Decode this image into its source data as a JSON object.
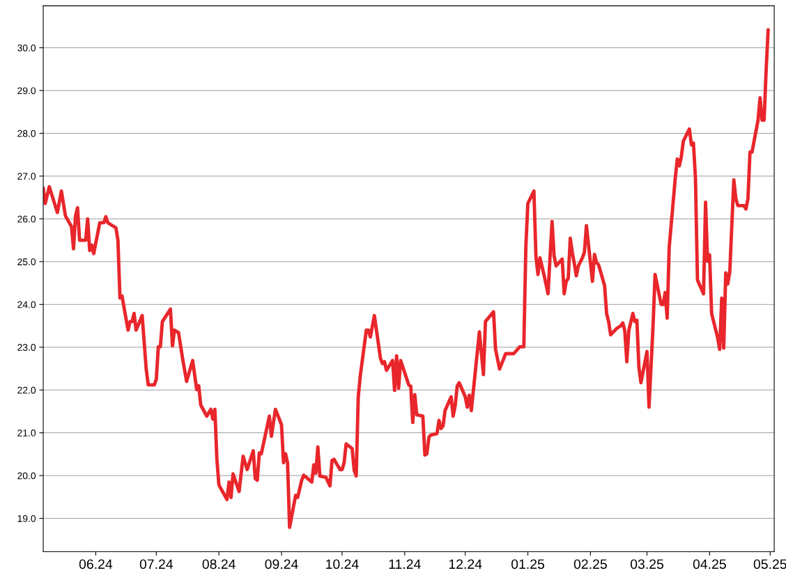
{
  "chart_data": {
    "type": "line",
    "x": [
      "2024-05-06",
      "2024-05-07",
      "2024-05-09",
      "2024-05-13",
      "2024-05-15",
      "2024-05-17",
      "2024-05-20",
      "2024-05-21",
      "2024-05-22",
      "2024-05-23",
      "2024-05-24",
      "2024-05-27",
      "2024-05-28",
      "2024-05-29",
      "2024-05-30",
      "2024-05-31",
      "2024-06-03",
      "2024-06-05",
      "2024-06-06",
      "2024-06-07",
      "2024-06-11",
      "2024-06-12",
      "2024-06-13",
      "2024-06-14",
      "2024-06-17",
      "2024-06-18",
      "2024-06-19",
      "2024-06-20",
      "2024-06-21",
      "2024-06-24",
      "2024-06-26",
      "2024-06-27",
      "2024-06-30",
      "2024-07-01",
      "2024-07-02",
      "2024-07-03",
      "2024-07-04",
      "2024-07-08",
      "2024-07-09",
      "2024-07-10",
      "2024-07-12",
      "2024-07-14",
      "2024-07-16",
      "2024-07-19",
      "2024-07-21",
      "2024-07-22",
      "2024-07-23",
      "2024-07-26",
      "2024-07-28",
      "2024-07-29",
      "2024-07-30",
      "2024-07-31",
      "2024-08-01",
      "2024-08-05",
      "2024-08-06",
      "2024-08-07",
      "2024-08-08",
      "2024-08-11",
      "2024-08-13",
      "2024-08-15",
      "2024-08-18",
      "2024-08-19",
      "2024-08-20",
      "2024-08-21",
      "2024-08-22",
      "2024-08-26",
      "2024-08-27",
      "2024-08-29",
      "2024-09-01",
      "2024-09-02",
      "2024-09-03",
      "2024-09-04",
      "2024-09-05",
      "2024-09-08",
      "2024-09-09",
      "2024-09-11",
      "2024-09-12",
      "2024-09-16",
      "2024-09-17",
      "2024-09-18",
      "2024-09-19",
      "2024-09-20",
      "2024-09-23",
      "2024-09-25",
      "2024-09-26",
      "2024-09-27",
      "2024-09-30",
      "2024-10-01",
      "2024-10-02",
      "2024-10-03",
      "2024-10-06",
      "2024-10-07",
      "2024-10-08",
      "2024-10-09",
      "2024-10-10",
      "2024-10-13",
      "2024-10-14",
      "2024-10-15",
      "2024-10-17",
      "2024-10-20",
      "2024-10-21",
      "2024-10-22",
      "2024-10-23",
      "2024-10-26",
      "2024-10-27",
      "2024-10-28",
      "2024-10-29",
      "2024-10-30",
      "2024-11-03",
      "2024-11-04",
      "2024-11-05",
      "2024-11-06",
      "2024-11-07",
      "2024-11-10",
      "2024-11-11",
      "2024-11-12",
      "2024-11-13",
      "2024-11-14",
      "2024-11-17",
      "2024-11-18",
      "2024-11-19",
      "2024-11-20",
      "2024-11-21",
      "2024-11-24",
      "2024-11-25",
      "2024-11-26",
      "2024-11-27",
      "2024-11-28",
      "2024-12-01",
      "2024-12-02",
      "2024-12-03",
      "2024-12-04",
      "2024-12-08",
      "2024-12-10",
      "2024-12-11",
      "2024-12-15",
      "2024-12-16",
      "2024-12-18",
      "2024-12-21",
      "2024-12-25",
      "2024-12-28",
      "2024-12-30",
      "2024-12-31",
      "2025-01-01",
      "2025-01-04",
      "2025-01-05",
      "2025-01-06",
      "2025-01-07",
      "2025-01-09",
      "2025-01-11",
      "2025-01-12",
      "2025-01-13",
      "2025-01-14",
      "2025-01-15",
      "2025-01-18",
      "2025-01-19",
      "2025-01-20",
      "2025-01-21",
      "2025-01-22",
      "2025-01-23",
      "2025-01-24",
      "2025-01-25",
      "2025-01-26",
      "2025-01-28",
      "2025-01-29",
      "2025-01-30",
      "2025-02-02",
      "2025-02-03",
      "2025-02-04",
      "2025-02-05",
      "2025-02-08",
      "2025-02-09",
      "2025-02-10",
      "2025-02-11",
      "2025-02-14",
      "2025-02-16",
      "2025-02-17",
      "2025-02-18",
      "2025-02-19",
      "2025-02-20",
      "2025-02-22",
      "2025-02-23",
      "2025-02-24",
      "2025-02-25",
      "2025-02-26",
      "2025-03-01",
      "2025-03-02",
      "2025-03-04",
      "2025-03-05",
      "2025-03-08",
      "2025-03-09",
      "2025-03-10",
      "2025-03-11",
      "2025-03-12",
      "2025-03-15",
      "2025-03-16",
      "2025-03-17",
      "2025-03-18",
      "2025-03-19",
      "2025-03-22",
      "2025-03-23",
      "2025-03-24",
      "2025-03-25",
      "2025-03-26",
      "2025-03-29",
      "2025-03-30",
      "2025-03-31",
      "2025-04-01",
      "2025-04-02",
      "2025-04-05",
      "2025-04-06",
      "2025-04-07",
      "2025-04-08",
      "2025-04-09",
      "2025-04-10",
      "2025-04-11",
      "2025-04-13",
      "2025-04-14",
      "2025-04-15",
      "2025-04-18",
      "2025-04-19",
      "2025-04-20",
      "2025-04-21",
      "2025-04-22",
      "2025-04-25",
      "2025-04-26",
      "2025-04-27",
      "2025-04-28",
      "2025-04-29",
      "2025-04-30"
    ],
    "series": [
      {
        "color": "#e8262b",
        "values": [
          26.72,
          26.36,
          26.75,
          26.15,
          26.65,
          26.07,
          25.82,
          25.3,
          26.07,
          26.26,
          25.5,
          25.5,
          26.0,
          25.26,
          25.39,
          25.19,
          25.91,
          25.91,
          26.05,
          25.91,
          25.79,
          25.5,
          24.15,
          24.2,
          23.4,
          23.6,
          23.6,
          23.79,
          23.4,
          23.74,
          22.49,
          22.12,
          22.12,
          22.25,
          23.01,
          23.01,
          23.6,
          23.89,
          23.03,
          23.4,
          23.34,
          22.74,
          22.2,
          22.69,
          22.01,
          22.1,
          21.65,
          21.39,
          21.55,
          21.32,
          21.55,
          20.38,
          19.78,
          19.44,
          19.85,
          19.49,
          20.04,
          19.63,
          20.45,
          20.14,
          20.58,
          19.93,
          19.89,
          20.53,
          20.51,
          21.39,
          20.92,
          21.55,
          21.19,
          20.3,
          20.51,
          20.3,
          18.79,
          19.54,
          19.49,
          19.89,
          20.01,
          19.85,
          20.25,
          20.06,
          20.67,
          19.99,
          19.96,
          19.76,
          20.35,
          20.38,
          20.14,
          20.14,
          20.3,
          20.74,
          20.63,
          20.12,
          19.99,
          21.83,
          22.33,
          23.4,
          23.4,
          23.24,
          23.74,
          22.74,
          22.62,
          22.66,
          22.46,
          22.69,
          21.99,
          22.8,
          22.04,
          22.69,
          22.12,
          22.09,
          21.24,
          21.89,
          21.42,
          21.39,
          20.48,
          20.51,
          20.9,
          20.95,
          20.98,
          21.29,
          21.1,
          21.16,
          21.52,
          21.84,
          21.39,
          21.63,
          22.09,
          22.17,
          21.84,
          21.6,
          21.88,
          21.52,
          23.36,
          22.36,
          23.6,
          23.83,
          22.95,
          22.49,
          22.85,
          22.85,
          23.01,
          23.01,
          25.34,
          26.36,
          26.65,
          25.13,
          24.7,
          25.09,
          24.69,
          24.25,
          25.13,
          25.94,
          25.13,
          24.9,
          25.06,
          24.25,
          24.54,
          24.61,
          25.55,
          25.22,
          24.96,
          24.67,
          24.9,
          25.09,
          25.22,
          25.84,
          24.54,
          25.17,
          24.98,
          24.93,
          24.44,
          23.79,
          23.6,
          23.29,
          23.44,
          23.5,
          23.57,
          23.39,
          22.66,
          23.39,
          23.79,
          23.6,
          23.63,
          22.53,
          22.17,
          22.9,
          21.6,
          23.5,
          24.7,
          24.0,
          24.0,
          24.28,
          23.68,
          25.34,
          26.95,
          27.4,
          27.24,
          27.45,
          27.82,
          28.1,
          27.73,
          27.77,
          26.96,
          24.57,
          24.25,
          26.39,
          25.01,
          25.16,
          23.79,
          23.22,
          22.95,
          24.15,
          22.98,
          24.74,
          24.48,
          24.77,
          26.91,
          26.47,
          26.31,
          26.31,
          26.23,
          26.47,
          27.56,
          27.56,
          28.31,
          28.83,
          28.31,
          28.31,
          29.48,
          30.42
        ]
      }
    ],
    "xlim": [
      "2024-05-06",
      "2025-05-03"
    ],
    "xticks": [
      {
        "value": "2024-06-01",
        "label": "06.24"
      },
      {
        "value": "2024-07-01",
        "label": "07.24"
      },
      {
        "value": "2024-08-01",
        "label": "08.24"
      },
      {
        "value": "2024-09-01",
        "label": "09.24"
      },
      {
        "value": "2024-10-01",
        "label": "10.24"
      },
      {
        "value": "2024-11-01",
        "label": "11.24"
      },
      {
        "value": "2024-12-01",
        "label": "12.24"
      },
      {
        "value": "2025-01-01",
        "label": "01.25"
      },
      {
        "value": "2025-02-01",
        "label": "02.25"
      },
      {
        "value": "2025-03-01",
        "label": "03.25"
      },
      {
        "value": "2025-04-01",
        "label": "04.25"
      },
      {
        "value": "2025-05-01",
        "label": "05.25"
      }
    ],
    "ylim": [
      18.22,
      30.98
    ],
    "yticks": [
      {
        "value": 19,
        "label": "19.0"
      },
      {
        "value": 20,
        "label": "20.0"
      },
      {
        "value": 21,
        "label": "21.0"
      },
      {
        "value": 22,
        "label": "22.0"
      },
      {
        "value": 23,
        "label": "23.0"
      },
      {
        "value": 24,
        "label": "24.0"
      },
      {
        "value": 25,
        "label": "25.0"
      },
      {
        "value": 26,
        "label": "26.0"
      },
      {
        "value": 27,
        "label": "27.0"
      },
      {
        "value": 28,
        "label": "28.0"
      },
      {
        "value": 29,
        "label": "29.0"
      },
      {
        "value": 30,
        "label": "30.0"
      }
    ],
    "grid": "y",
    "line_style": "solid",
    "marker": "none",
    "legend": false
  }
}
